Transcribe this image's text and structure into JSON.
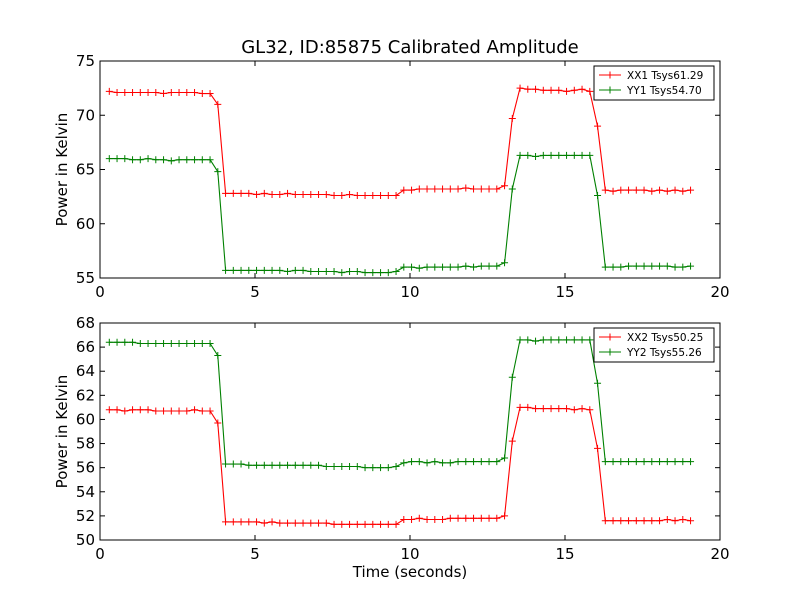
{
  "figure": {
    "title": "GL32, ID:85875 Calibrated Amplitude"
  },
  "chart_data": [
    {
      "type": "line",
      "title": "GL32, ID:85875 Calibrated Amplitude",
      "xlabel": "",
      "ylabel": "Power in Kelvin",
      "xlim": [
        0,
        20
      ],
      "ylim": [
        55,
        75
      ],
      "xticks": [
        0,
        5,
        10,
        15,
        20
      ],
      "yticks": [
        55,
        60,
        65,
        70,
        75
      ],
      "grid": false,
      "legend_position": "top-right",
      "series": [
        {
          "name": "XX1 Tsys61.29",
          "color": "#ff0000",
          "x": [
            0.3,
            0.55,
            0.8,
            1.05,
            1.3,
            1.55,
            1.8,
            2.05,
            2.3,
            2.55,
            2.8,
            3.05,
            3.3,
            3.55,
            3.8,
            4.05,
            4.3,
            4.55,
            4.8,
            5.05,
            5.3,
            5.55,
            5.8,
            6.05,
            6.3,
            6.55,
            6.8,
            7.05,
            7.3,
            7.55,
            7.8,
            8.05,
            8.3,
            8.55,
            8.8,
            9.05,
            9.3,
            9.55,
            9.8,
            10.05,
            10.3,
            10.55,
            10.8,
            11.05,
            11.3,
            11.55,
            11.8,
            12.05,
            12.3,
            12.55,
            12.8,
            13.05,
            13.3,
            13.55,
            13.8,
            14.05,
            14.3,
            14.55,
            14.8,
            15.05,
            15.3,
            15.55,
            15.8,
            16.05,
            16.3,
            16.55,
            16.8,
            17.05,
            17.3,
            17.55,
            17.8,
            18.05,
            18.3,
            18.55,
            18.8,
            19.05
          ],
          "y": [
            72.2,
            72.1,
            72.1,
            72.1,
            72.1,
            72.1,
            72.1,
            72.0,
            72.1,
            72.1,
            72.1,
            72.1,
            72.0,
            72.0,
            71.0,
            62.8,
            62.8,
            62.8,
            62.8,
            62.7,
            62.8,
            62.7,
            62.7,
            62.8,
            62.7,
            62.7,
            62.7,
            62.7,
            62.7,
            62.6,
            62.6,
            62.7,
            62.6,
            62.6,
            62.6,
            62.6,
            62.6,
            62.6,
            63.1,
            63.1,
            63.2,
            63.2,
            63.2,
            63.2,
            63.2,
            63.2,
            63.3,
            63.2,
            63.2,
            63.2,
            63.2,
            63.5,
            69.7,
            72.5,
            72.4,
            72.4,
            72.3,
            72.3,
            72.3,
            72.2,
            72.3,
            72.4,
            72.2,
            69.0,
            63.1,
            63.0,
            63.1,
            63.1,
            63.1,
            63.1,
            63.0,
            63.1,
            63.0,
            63.1,
            63.0,
            63.1
          ]
        },
        {
          "name": "YY1 Tsys54.70",
          "color": "#008000",
          "x": [
            0.3,
            0.55,
            0.8,
            1.05,
            1.3,
            1.55,
            1.8,
            2.05,
            2.3,
            2.55,
            2.8,
            3.05,
            3.3,
            3.55,
            3.8,
            4.05,
            4.3,
            4.55,
            4.8,
            5.05,
            5.3,
            5.55,
            5.8,
            6.05,
            6.3,
            6.55,
            6.8,
            7.05,
            7.3,
            7.55,
            7.8,
            8.05,
            8.3,
            8.55,
            8.8,
            9.05,
            9.3,
            9.55,
            9.8,
            10.05,
            10.3,
            10.55,
            10.8,
            11.05,
            11.3,
            11.55,
            11.8,
            12.05,
            12.3,
            12.55,
            12.8,
            13.05,
            13.3,
            13.55,
            13.8,
            14.05,
            14.3,
            14.55,
            14.8,
            15.05,
            15.3,
            15.55,
            15.8,
            16.05,
            16.3,
            16.55,
            16.8,
            17.05,
            17.3,
            17.55,
            17.8,
            18.05,
            18.3,
            18.55,
            18.8,
            19.05
          ],
          "y": [
            66.0,
            66.0,
            66.0,
            65.9,
            65.9,
            66.0,
            65.9,
            65.9,
            65.8,
            65.9,
            65.9,
            65.9,
            65.9,
            65.9,
            64.8,
            55.7,
            55.7,
            55.7,
            55.7,
            55.7,
            55.7,
            55.7,
            55.7,
            55.6,
            55.7,
            55.7,
            55.6,
            55.6,
            55.6,
            55.6,
            55.5,
            55.6,
            55.6,
            55.5,
            55.5,
            55.5,
            55.5,
            55.6,
            56.0,
            56.0,
            55.9,
            56.0,
            56.0,
            56.0,
            56.0,
            56.0,
            56.1,
            56.0,
            56.1,
            56.1,
            56.1,
            56.4,
            63.2,
            66.3,
            66.3,
            66.2,
            66.3,
            66.3,
            66.3,
            66.3,
            66.3,
            66.3,
            66.3,
            62.6,
            56.0,
            56.0,
            56.0,
            56.1,
            56.1,
            56.1,
            56.1,
            56.1,
            56.1,
            56.0,
            56.0,
            56.1
          ]
        }
      ]
    },
    {
      "type": "line",
      "title": "",
      "xlabel": "Time (seconds)",
      "ylabel": "Power in Kelvin",
      "xlim": [
        0,
        20
      ],
      "ylim": [
        50,
        68
      ],
      "xticks": [
        0,
        5,
        10,
        15,
        20
      ],
      "yticks": [
        50,
        52,
        54,
        56,
        58,
        60,
        62,
        64,
        66,
        68
      ],
      "grid": false,
      "legend_position": "top-right",
      "series": [
        {
          "name": "XX2 Tsys50.25",
          "color": "#ff0000",
          "x": [
            0.3,
            0.55,
            0.8,
            1.05,
            1.3,
            1.55,
            1.8,
            2.05,
            2.3,
            2.55,
            2.8,
            3.05,
            3.3,
            3.55,
            3.8,
            4.05,
            4.3,
            4.55,
            4.8,
            5.05,
            5.3,
            5.55,
            5.8,
            6.05,
            6.3,
            6.55,
            6.8,
            7.05,
            7.3,
            7.55,
            7.8,
            8.05,
            8.3,
            8.55,
            8.8,
            9.05,
            9.3,
            9.55,
            9.8,
            10.05,
            10.3,
            10.55,
            10.8,
            11.05,
            11.3,
            11.55,
            11.8,
            12.05,
            12.3,
            12.55,
            12.8,
            13.05,
            13.3,
            13.55,
            13.8,
            14.05,
            14.3,
            14.55,
            14.8,
            15.05,
            15.3,
            15.55,
            15.8,
            16.05,
            16.3,
            16.55,
            16.8,
            17.05,
            17.3,
            17.55,
            17.8,
            18.05,
            18.3,
            18.55,
            18.8,
            19.05
          ],
          "y": [
            60.8,
            60.8,
            60.7,
            60.8,
            60.8,
            60.8,
            60.7,
            60.7,
            60.7,
            60.7,
            60.7,
            60.8,
            60.7,
            60.7,
            59.7,
            51.5,
            51.5,
            51.5,
            51.5,
            51.5,
            51.4,
            51.5,
            51.4,
            51.4,
            51.4,
            51.4,
            51.4,
            51.4,
            51.4,
            51.3,
            51.3,
            51.3,
            51.3,
            51.3,
            51.3,
            51.3,
            51.3,
            51.3,
            51.7,
            51.7,
            51.8,
            51.7,
            51.7,
            51.7,
            51.8,
            51.8,
            51.8,
            51.8,
            51.8,
            51.8,
            51.8,
            52.0,
            58.2,
            61.0,
            61.0,
            60.9,
            60.9,
            60.9,
            60.9,
            60.9,
            60.8,
            60.9,
            60.8,
            57.6,
            51.6,
            51.6,
            51.6,
            51.6,
            51.6,
            51.6,
            51.6,
            51.6,
            51.7,
            51.6,
            51.7,
            51.6
          ]
        },
        {
          "name": "YY2 Tsys55.26",
          "color": "#008000",
          "x": [
            0.3,
            0.55,
            0.8,
            1.05,
            1.3,
            1.55,
            1.8,
            2.05,
            2.3,
            2.55,
            2.8,
            3.05,
            3.3,
            3.55,
            3.8,
            4.05,
            4.3,
            4.55,
            4.8,
            5.05,
            5.3,
            5.55,
            5.8,
            6.05,
            6.3,
            6.55,
            6.8,
            7.05,
            7.3,
            7.55,
            7.8,
            8.05,
            8.3,
            8.55,
            8.8,
            9.05,
            9.3,
            9.55,
            9.8,
            10.05,
            10.3,
            10.55,
            10.8,
            11.05,
            11.3,
            11.55,
            11.8,
            12.05,
            12.3,
            12.55,
            12.8,
            13.05,
            13.3,
            13.55,
            13.8,
            14.05,
            14.3,
            14.55,
            14.8,
            15.05,
            15.3,
            15.55,
            15.8,
            16.05,
            16.3,
            16.55,
            16.8,
            17.05,
            17.3,
            17.55,
            17.8,
            18.05,
            18.3,
            18.55,
            18.8,
            19.05
          ],
          "y": [
            66.4,
            66.4,
            66.4,
            66.4,
            66.3,
            66.3,
            66.3,
            66.3,
            66.3,
            66.3,
            66.3,
            66.3,
            66.3,
            66.3,
            65.3,
            56.3,
            56.3,
            56.3,
            56.2,
            56.2,
            56.2,
            56.2,
            56.2,
            56.2,
            56.2,
            56.2,
            56.2,
            56.2,
            56.1,
            56.1,
            56.1,
            56.1,
            56.1,
            56.0,
            56.0,
            56.0,
            56.0,
            56.1,
            56.4,
            56.5,
            56.5,
            56.4,
            56.5,
            56.4,
            56.4,
            56.5,
            56.5,
            56.5,
            56.5,
            56.5,
            56.5,
            56.8,
            63.5,
            66.6,
            66.6,
            66.5,
            66.6,
            66.6,
            66.6,
            66.6,
            66.6,
            66.6,
            66.6,
            63.0,
            56.5,
            56.5,
            56.5,
            56.5,
            56.5,
            56.5,
            56.5,
            56.5,
            56.5,
            56.5,
            56.5,
            56.5
          ]
        }
      ]
    }
  ]
}
